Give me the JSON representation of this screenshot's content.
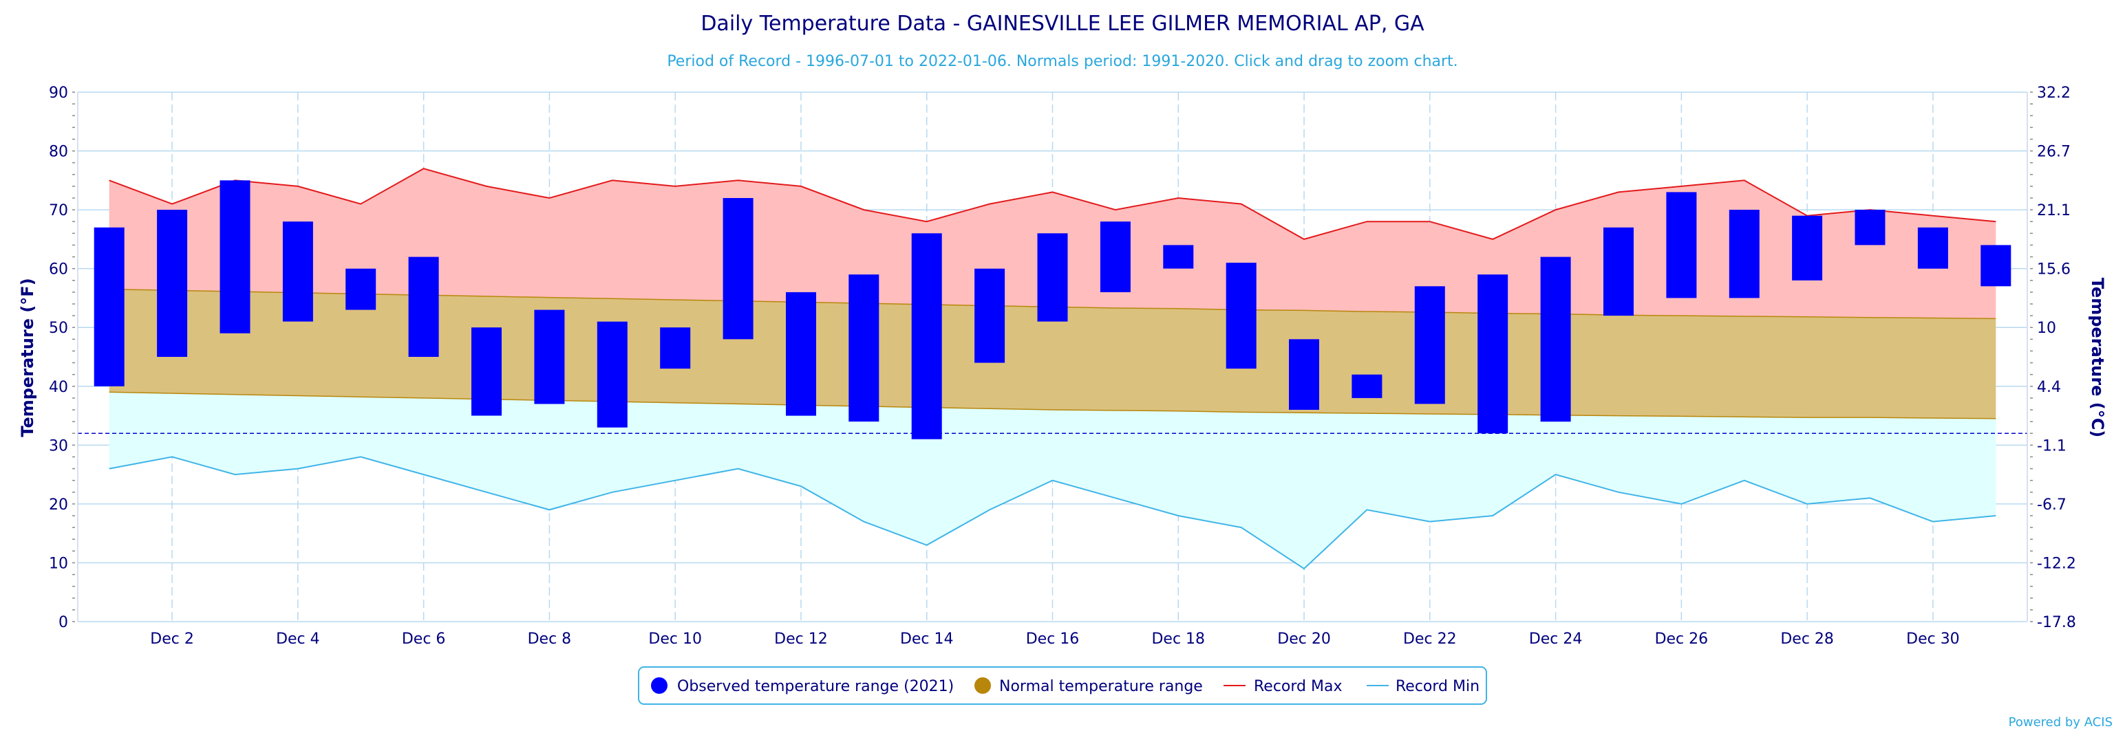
{
  "chart_data": {
    "type": "bar",
    "title": "Daily Temperature Data - GAINESVILLE LEE GILMER MEMORIAL AP, GA",
    "subtitle": "Period of Record - 1996-07-01 to 2022-01-06. Normals period: 1991-2020. Click and drag to zoom chart.",
    "ylabel": "Temperature (°F)",
    "y2label": "Temperature (°C)",
    "ylim": [
      0,
      90
    ],
    "yticks": [
      "0",
      "10",
      "20",
      "30",
      "40",
      "50",
      "60",
      "70",
      "80",
      "90"
    ],
    "y2ticks": [
      "-17.8",
      "-12.2",
      "-6.7",
      "-1.1",
      "4.4",
      "10",
      "15.6",
      "21.1",
      "26.7",
      "32.2"
    ],
    "xlim": [
      0.5,
      31.5
    ],
    "xticks": [
      {
        "day": 2,
        "label": "Dec 2"
      },
      {
        "day": 4,
        "label": "Dec 4"
      },
      {
        "day": 6,
        "label": "Dec 6"
      },
      {
        "day": 8,
        "label": "Dec 8"
      },
      {
        "day": 10,
        "label": "Dec 10"
      },
      {
        "day": 12,
        "label": "Dec 12"
      },
      {
        "day": 14,
        "label": "Dec 14"
      },
      {
        "day": 16,
        "label": "Dec 16"
      },
      {
        "day": 18,
        "label": "Dec 18"
      },
      {
        "day": 20,
        "label": "Dec 20"
      },
      {
        "day": 22,
        "label": "Dec 22"
      },
      {
        "day": 24,
        "label": "Dec 24"
      },
      {
        "day": 26,
        "label": "Dec 26"
      },
      {
        "day": 28,
        "label": "Dec 28"
      },
      {
        "day": 30,
        "label": "Dec 30"
      }
    ],
    "freezing_line": 32,
    "grid": true,
    "legend_position": "bottom-center",
    "days": [
      1,
      2,
      3,
      4,
      5,
      6,
      7,
      8,
      9,
      10,
      11,
      12,
      13,
      14,
      15,
      16,
      17,
      18,
      19,
      20,
      21,
      22,
      23,
      24,
      25,
      26,
      27,
      28,
      29,
      30,
      31
    ],
    "series": [
      {
        "name": "Observed temperature range (2021)",
        "color": "#0000ff",
        "low": [
          40,
          45,
          49,
          51,
          53,
          45,
          35,
          37,
          33,
          43,
          48,
          35,
          34,
          31,
          44,
          51,
          56,
          60,
          43,
          36,
          38,
          37,
          32,
          34,
          52,
          55,
          55,
          58,
          64,
          60,
          57
        ],
        "high": [
          67,
          70,
          75,
          68,
          60,
          62,
          50,
          53,
          51,
          50,
          72,
          56,
          59,
          66,
          60,
          66,
          68,
          64,
          61,
          48,
          42,
          57,
          59,
          62,
          67,
          73,
          70,
          69,
          70,
          67,
          64
        ]
      },
      {
        "name": "Normal temperature range",
        "color": "#b8860b",
        "fill": "#dbc17e",
        "high": [
          56.5,
          56.3,
          56.1,
          55.9,
          55.7,
          55.5,
          55.3,
          55.1,
          54.9,
          54.7,
          54.5,
          54.3,
          54.1,
          53.9,
          53.7,
          53.5,
          53.3,
          53.2,
          53.0,
          52.9,
          52.7,
          52.6,
          52.4,
          52.3,
          52.1,
          52.0,
          51.9,
          51.8,
          51.7,
          51.6,
          51.5
        ],
        "low": [
          39.0,
          38.8,
          38.6,
          38.4,
          38.2,
          38.0,
          37.8,
          37.6,
          37.4,
          37.2,
          37.0,
          36.8,
          36.6,
          36.4,
          36.2,
          36.0,
          35.9,
          35.8,
          35.6,
          35.5,
          35.4,
          35.3,
          35.2,
          35.1,
          35.0,
          34.9,
          34.8,
          34.7,
          34.7,
          34.6,
          34.5
        ]
      },
      {
        "name": "Record Max",
        "color": "#e31a1c",
        "fill": "#ffbdbd",
        "values": [
          75,
          71,
          75,
          74,
          71,
          77,
          74,
          72,
          75,
          74,
          75,
          74,
          70,
          68,
          71,
          73,
          70,
          72,
          71,
          65,
          68,
          68,
          65,
          70,
          73,
          74,
          75,
          69,
          70,
          69,
          68
        ]
      },
      {
        "name": "Record Min",
        "color": "#3fb4e8",
        "fill": "#e0ffff",
        "values": [
          26,
          28,
          25,
          26,
          28,
          25,
          22,
          19,
          22,
          24,
          26,
          23,
          17,
          13,
          19,
          24,
          21,
          18,
          16,
          9,
          19,
          17,
          18,
          25,
          22,
          20,
          24,
          20,
          21,
          17,
          18
        ]
      }
    ],
    "credit": "Powered by ACIS"
  }
}
